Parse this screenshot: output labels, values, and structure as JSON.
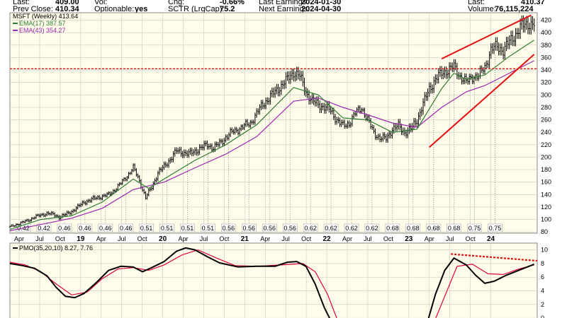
{
  "colors": {
    "panel_bg": "#fffde9",
    "grid": "#c8c8c8",
    "price": "#000000",
    "ema17": "#2e7d32",
    "ema43": "#9c27b0",
    "trend": "#e01010",
    "pmo": "#000000",
    "pmo_signal": "#e0003a"
  },
  "header": {
    "row1": [
      {
        "label": "Last:",
        "value": "409.00"
      },
      {
        "label": "Vol:",
        "value": ""
      },
      {
        "label": "Chg:",
        "value": "-0.66%"
      },
      {
        "label": "Last Earnings:",
        "value": "2024-01-30"
      },
      {
        "label": "Last:",
        "value": "410.37"
      }
    ],
    "row2": [
      {
        "label": "Prev Close:",
        "value": "410.34"
      },
      {
        "label": "Optionable:",
        "value": "yes"
      },
      {
        "label": "SCTR (LrgCap):",
        "value": "75.2"
      },
      {
        "label": "Next Earnings:",
        "value": "2024-04-30"
      },
      {
        "label": "Volume:",
        "value": "76,115,224"
      }
    ]
  },
  "legend": {
    "price": "MSFT (Weekly) 413.64",
    "ema17": "EMA(17) 387.57",
    "ema43": "EMA(43) 354.27",
    "pmo": "PMO(35,20,10) 8.27, 7.76"
  },
  "chart_data": [
    {
      "type": "ohlc",
      "y_ticks": [
        80,
        100,
        120,
        140,
        160,
        180,
        200,
        220,
        240,
        260,
        280,
        300,
        320,
        340,
        360,
        380,
        400,
        420
      ],
      "ylim": [
        78,
        432
      ],
      "months": [
        "Apr",
        "Jul",
        "Oct",
        "19",
        "Apr",
        "Jul",
        "Oct",
        "20",
        "Apr",
        "Jul",
        "Oct",
        "21",
        "Apr",
        "Jul",
        "Oct",
        "22",
        "Apr",
        "Jul",
        "Oct",
        "23",
        "Apr",
        "Jul",
        "Oct",
        "24"
      ],
      "dividends": [
        "0.42",
        "0.42",
        "0.46",
        "0.46",
        "0.46",
        "0.46",
        "0.51",
        "0.51",
        "0.51",
        "0.51",
        "0.56",
        "0.56",
        "0.56",
        "0.56",
        "0.62",
        "0.62",
        "0.62",
        "0.62",
        "0.68",
        "0.68",
        "0.68",
        "0.68",
        "0.75",
        "0.75"
      ],
      "close_path": [
        [
          0,
          88
        ],
        [
          4,
          92
        ],
        [
          8,
          95
        ],
        [
          12,
          99
        ],
        [
          16,
          104
        ],
        [
          20,
          107
        ],
        [
          24,
          110
        ],
        [
          28,
          108
        ],
        [
          32,
          104
        ],
        [
          36,
          108
        ],
        [
          40,
          113
        ],
        [
          44,
          120
        ],
        [
          48,
          128
        ],
        [
          52,
          131
        ],
        [
          56,
          135
        ],
        [
          60,
          137
        ],
        [
          64,
          140
        ],
        [
          68,
          148
        ],
        [
          72,
          158
        ],
        [
          76,
          170
        ],
        [
          80,
          183
        ],
        [
          84,
          162
        ],
        [
          88,
          135
        ],
        [
          92,
          152
        ],
        [
          96,
          175
        ],
        [
          100,
          185
        ],
        [
          104,
          197
        ],
        [
          108,
          210
        ],
        [
          112,
          208
        ],
        [
          116,
          205
        ],
        [
          120,
          210
        ],
        [
          124,
          215
        ],
        [
          128,
          220
        ],
        [
          132,
          215
        ],
        [
          136,
          222
        ],
        [
          140,
          232
        ],
        [
          144,
          240
        ],
        [
          148,
          245
        ],
        [
          152,
          250
        ],
        [
          156,
          255
        ],
        [
          160,
          270
        ],
        [
          164,
          285
        ],
        [
          168,
          295
        ],
        [
          172,
          305
        ],
        [
          176,
          315
        ],
        [
          180,
          325
        ],
        [
          184,
          337
        ],
        [
          188,
          330
        ],
        [
          192,
          305
        ],
        [
          196,
          290
        ],
        [
          200,
          285
        ],
        [
          204,
          280
        ],
        [
          208,
          275
        ],
        [
          212,
          260
        ],
        [
          216,
          250
        ],
        [
          220,
          255
        ],
        [
          224,
          270
        ],
        [
          228,
          280
        ],
        [
          232,
          260
        ],
        [
          236,
          240
        ],
        [
          240,
          230
        ],
        [
          244,
          230
        ],
        [
          248,
          245
        ],
        [
          252,
          250
        ],
        [
          256,
          240
        ],
        [
          260,
          245
        ],
        [
          264,
          260
        ],
        [
          268,
          285
        ],
        [
          272,
          310
        ],
        [
          276,
          325
        ],
        [
          280,
          335
        ],
        [
          284,
          340
        ],
        [
          288,
          345
        ],
        [
          292,
          330
        ],
        [
          296,
          320
        ],
        [
          300,
          330
        ],
        [
          304,
          330
        ],
        [
          308,
          345
        ],
        [
          312,
          372
        ],
        [
          316,
          378
        ],
        [
          320,
          372
        ],
        [
          324,
          385
        ],
        [
          328,
          398
        ],
        [
          332,
          410
        ],
        [
          336,
          415
        ],
        [
          340,
          413
        ]
      ],
      "ema17_path": [
        [
          0,
          84
        ],
        [
          20,
          100
        ],
        [
          40,
          106
        ],
        [
          60,
          128
        ],
        [
          80,
          165
        ],
        [
          90,
          150
        ],
        [
          100,
          165
        ],
        [
          120,
          195
        ],
        [
          140,
          220
        ],
        [
          160,
          252
        ],
        [
          184,
          312
        ],
        [
          200,
          300
        ],
        [
          216,
          263
        ],
        [
          232,
          260
        ],
        [
          248,
          240
        ],
        [
          264,
          245
        ],
        [
          280,
          310
        ],
        [
          288,
          335
        ],
        [
          296,
          325
        ],
        [
          308,
          332
        ],
        [
          324,
          362
        ],
        [
          340,
          388
        ]
      ],
      "ema43_path": [
        [
          0,
          82
        ],
        [
          20,
          92
        ],
        [
          40,
          102
        ],
        [
          60,
          118
        ],
        [
          80,
          148
        ],
        [
          100,
          160
        ],
        [
          120,
          183
        ],
        [
          140,
          205
        ],
        [
          160,
          233
        ],
        [
          184,
          290
        ],
        [
          200,
          295
        ],
        [
          216,
          280
        ],
        [
          232,
          268
        ],
        [
          248,
          255
        ],
        [
          264,
          248
        ],
        [
          280,
          280
        ],
        [
          296,
          305
        ],
        [
          308,
          315
        ],
        [
          324,
          335
        ],
        [
          340,
          355
        ]
      ],
      "horizontal_line": 342,
      "upper_trendline": [
        [
          280,
          358
        ],
        [
          338,
          428
        ]
      ],
      "lower_trendline": [
        [
          272,
          216
        ],
        [
          340,
          365
        ]
      ]
    },
    {
      "type": "line",
      "y_ticks": [
        0,
        2,
        4,
        6,
        8,
        10
      ],
      "ylim": [
        -0.4,
        11
      ],
      "pmo_path": [
        [
          0,
          8.0
        ],
        [
          8,
          7.7
        ],
        [
          16,
          7.3
        ],
        [
          24,
          6.2
        ],
        [
          30,
          4.5
        ],
        [
          36,
          3.2
        ],
        [
          42,
          3.0
        ],
        [
          48,
          3.6
        ],
        [
          56,
          5.2
        ],
        [
          64,
          7.0
        ],
        [
          72,
          7.6
        ],
        [
          80,
          7.5
        ],
        [
          86,
          6.8
        ],
        [
          92,
          7.4
        ],
        [
          100,
          8.3
        ],
        [
          108,
          9.8
        ],
        [
          114,
          10.3
        ],
        [
          120,
          10.0
        ],
        [
          128,
          9.0
        ],
        [
          136,
          8.1
        ],
        [
          148,
          7.5
        ],
        [
          160,
          7.6
        ],
        [
          172,
          7.6
        ],
        [
          180,
          8.2
        ],
        [
          186,
          8.3
        ],
        [
          192,
          7.6
        ],
        [
          198,
          5.0
        ],
        [
          204,
          1.5
        ],
        [
          210,
          -1.2
        ],
        [
          270,
          -1.2
        ],
        [
          276,
          3.5
        ],
        [
          282,
          7.0
        ],
        [
          288,
          8.8
        ],
        [
          296,
          7.8
        ],
        [
          302,
          6.3
        ],
        [
          308,
          5.1
        ],
        [
          314,
          5.4
        ],
        [
          322,
          6.3
        ],
        [
          330,
          7.0
        ],
        [
          340,
          7.9
        ]
      ],
      "signal_path": [
        [
          0,
          8.2
        ],
        [
          10,
          7.8
        ],
        [
          20,
          6.8
        ],
        [
          30,
          5.0
        ],
        [
          40,
          3.4
        ],
        [
          50,
          3.8
        ],
        [
          60,
          5.8
        ],
        [
          70,
          7.2
        ],
        [
          80,
          7.4
        ],
        [
          90,
          7.0
        ],
        [
          100,
          7.8
        ],
        [
          112,
          9.3
        ],
        [
          122,
          10.0
        ],
        [
          134,
          8.8
        ],
        [
          146,
          7.7
        ],
        [
          160,
          7.6
        ],
        [
          176,
          7.8
        ],
        [
          190,
          8.0
        ],
        [
          198,
          6.8
        ],
        [
          206,
          3.5
        ],
        [
          214,
          -1.2
        ],
        [
          274,
          -1.2
        ],
        [
          282,
          3.2
        ],
        [
          290,
          7.6
        ],
        [
          300,
          7.9
        ],
        [
          310,
          6.5
        ],
        [
          320,
          6.4
        ],
        [
          330,
          7.2
        ],
        [
          340,
          7.8
        ]
      ],
      "declining_tops_line": [
        [
          286,
          9.4
        ],
        [
          342,
          8.4
        ]
      ]
    }
  ]
}
